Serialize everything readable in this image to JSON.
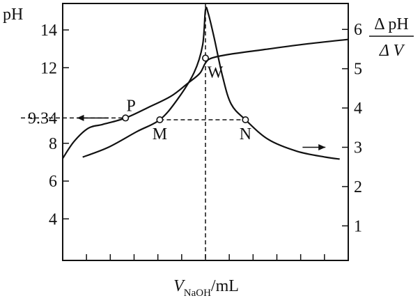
{
  "chart_data": {
    "type": "line",
    "title": "",
    "xlabel": {
      "symbol": "V",
      "subscript": "NaOH",
      "unit": "/mL"
    },
    "ylabel_left": "pH",
    "ylabel_right": {
      "numerator": "Δ pH",
      "denominator": "Δ V"
    },
    "y_left": {
      "ticks": [
        4,
        6,
        8,
        12,
        14
      ],
      "ylim": [
        1.8,
        15.4
      ],
      "special_tick": {
        "value": 9.34,
        "label": "9.34"
      }
    },
    "y_right": {
      "ticks": [
        1,
        2,
        3,
        4,
        5,
        6
      ],
      "ylim": [
        0.12,
        6.66
      ]
    },
    "x": {
      "xlim": [
        0,
        100
      ],
      "minor_tick_count": 11,
      "equivalence": 50
    },
    "series": [
      {
        "axis": "left",
        "points": [
          [
            0,
            7.2
          ],
          [
            4,
            8.1
          ],
          [
            9,
            8.8
          ],
          [
            14,
            9.0
          ],
          [
            22,
            9.34
          ],
          [
            30,
            9.9
          ],
          [
            38,
            10.5
          ],
          [
            44,
            11.2
          ],
          [
            48,
            11.7
          ],
          [
            50,
            12.25
          ],
          [
            52,
            12.5
          ],
          [
            58,
            12.7
          ],
          [
            70,
            12.95
          ],
          [
            85,
            13.25
          ],
          [
            100,
            13.5
          ]
        ]
      },
      {
        "axis": "right",
        "points": [
          [
            7,
            2.75
          ],
          [
            16,
            3.0
          ],
          [
            26,
            3.4
          ],
          [
            34,
            3.7
          ],
          [
            40,
            4.2
          ],
          [
            46,
            4.9
          ],
          [
            49,
            5.6
          ],
          [
            50,
            6.5
          ],
          [
            51,
            6.4
          ],
          [
            53,
            5.8
          ],
          [
            56,
            4.8
          ],
          [
            59,
            4.1
          ],
          [
            64,
            3.7
          ],
          [
            72,
            3.2
          ],
          [
            82,
            2.9
          ],
          [
            92,
            2.75
          ],
          [
            97,
            2.7
          ]
        ]
      }
    ],
    "points": [
      {
        "label": "P",
        "x": 22,
        "y": 9.34,
        "axis": "left",
        "label_pos": "above"
      },
      {
        "label": "W",
        "x": 50,
        "y": 5.27,
        "axis": "right",
        "label_pos": "below-right"
      },
      {
        "label": "M",
        "x": 34,
        "y": 3.7,
        "axis": "right",
        "label_pos": "below"
      },
      {
        "label": "N",
        "x": 64,
        "y": 3.7,
        "axis": "right",
        "label_pos": "below"
      }
    ],
    "arrows": [
      {
        "x_from": 16,
        "x_to": 5,
        "y": 9.34,
        "axis": "left"
      },
      {
        "x_from": 84,
        "x_to": 92,
        "y": 3.0,
        "axis": "right"
      }
    ]
  }
}
